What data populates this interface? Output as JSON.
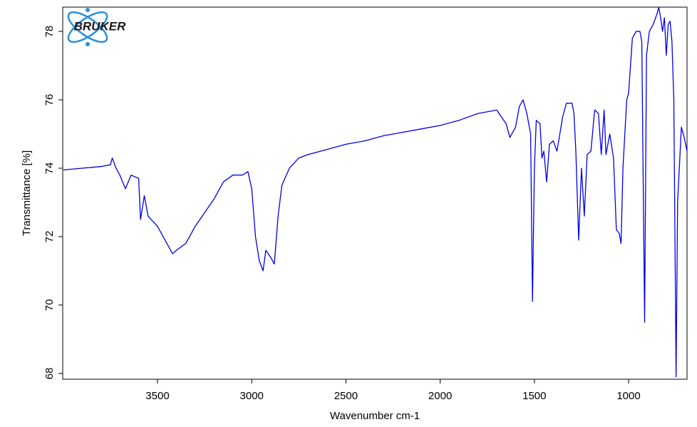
{
  "chart_data": {
    "type": "line",
    "logo": "BRUKER",
    "xlabel": "Wavenumber cm-1",
    "ylabel": "Transmittance [%]",
    "xlim": [
      4003,
      690
    ],
    "ylim": [
      67.83,
      78.71
    ],
    "xticks": [
      3500,
      3000,
      2500,
      2000,
      1500,
      1000
    ],
    "yticks": [
      68,
      70,
      72,
      74,
      76,
      78
    ],
    "color": "#0000e6",
    "x": [
      4000,
      3900,
      3800,
      3750,
      3740,
      3720,
      3700,
      3670,
      3640,
      3600,
      3590,
      3570,
      3550,
      3500,
      3450,
      3420,
      3400,
      3350,
      3300,
      3250,
      3200,
      3150,
      3100,
      3050,
      3020,
      3000,
      2980,
      2960,
      2940,
      2925,
      2900,
      2880,
      2860,
      2840,
      2800,
      2750,
      2700,
      2600,
      2500,
      2400,
      2300,
      2200,
      2100,
      2000,
      1900,
      1800,
      1700,
      1650,
      1630,
      1600,
      1580,
      1560,
      1540,
      1520,
      1510,
      1500,
      1490,
      1470,
      1460,
      1450,
      1435,
      1420,
      1400,
      1380,
      1350,
      1330,
      1300,
      1290,
      1280,
      1265,
      1250,
      1235,
      1220,
      1200,
      1180,
      1160,
      1145,
      1130,
      1120,
      1100,
      1080,
      1065,
      1050,
      1040,
      1030,
      1010,
      1000,
      980,
      960,
      940,
      930,
      915,
      905,
      890,
      870,
      850,
      840,
      830,
      820,
      810,
      800,
      790,
      780,
      770,
      760,
      748,
      740,
      720,
      705,
      690
    ],
    "values": [
      73.95,
      74.0,
      74.05,
      74.1,
      74.3,
      74.0,
      73.8,
      73.4,
      73.8,
      73.7,
      72.5,
      73.2,
      72.6,
      72.3,
      71.8,
      71.5,
      71.6,
      71.8,
      72.3,
      72.7,
      73.1,
      73.6,
      73.8,
      73.8,
      73.9,
      73.4,
      72.0,
      71.3,
      71.0,
      71.6,
      71.4,
      71.2,
      72.6,
      73.5,
      74.0,
      74.3,
      74.4,
      74.55,
      74.7,
      74.8,
      74.95,
      75.05,
      75.15,
      75.25,
      75.4,
      75.6,
      75.7,
      75.3,
      74.9,
      75.2,
      75.8,
      76.0,
      75.6,
      75.0,
      70.1,
      74.0,
      75.4,
      75.3,
      74.3,
      74.5,
      73.6,
      74.7,
      74.8,
      74.5,
      75.5,
      75.9,
      75.9,
      75.6,
      74.5,
      71.9,
      74.0,
      72.6,
      74.4,
      74.5,
      75.7,
      75.6,
      74.4,
      75.7,
      74.4,
      75.0,
      74.3,
      72.2,
      72.1,
      71.8,
      74.0,
      76.0,
      76.2,
      77.8,
      78.0,
      78.0,
      77.7,
      69.5,
      77.3,
      78.0,
      78.2,
      78.5,
      78.7,
      78.4,
      78.0,
      78.4,
      77.3,
      78.2,
      78.3,
      77.7,
      76.0,
      67.9,
      73.0,
      75.2,
      74.9,
      74.5
    ]
  }
}
